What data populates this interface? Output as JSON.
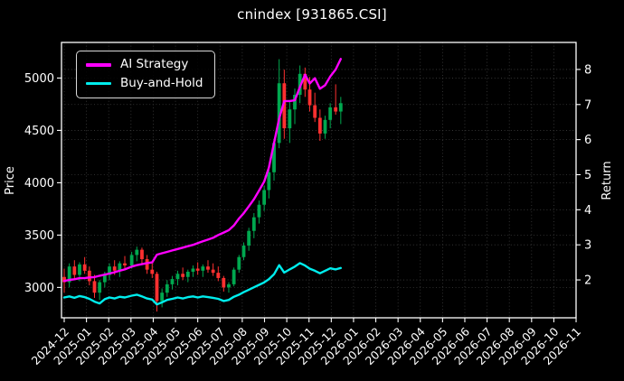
{
  "title": "cnindex [931865.CSI]",
  "legend": {
    "position": "upper left",
    "items": [
      {
        "label": "AI Strategy",
        "color": "#FF00FF"
      },
      {
        "label": "Buy-and-Hold",
        "color": "#00EDED"
      }
    ]
  },
  "colors": {
    "background": "#000000",
    "text": "#FFFFFF",
    "grid": "#3D3D3D",
    "spine": "#FFFFFF",
    "candle_up": "#00A84F",
    "candle_down": "#FF3030",
    "ai_line": "#FF00FF",
    "bh_line": "#00EDED"
  },
  "axes": {
    "x": {
      "tick_labels": [
        "2024-12",
        "2025-01",
        "2025-02",
        "2025-03",
        "2025-04",
        "2025-05",
        "2025-06",
        "2025-07",
        "2025-08",
        "2025-09",
        "2025-10",
        "2025-11",
        "2025-12",
        "2026-01",
        "2026-02",
        "2026-03",
        "2026-04",
        "2026-05",
        "2026-06",
        "2026-07",
        "2026-08",
        "2026-09",
        "2026-10",
        "2026-11"
      ],
      "label_rotation_deg": 45
    },
    "y_left": {
      "label": "Price",
      "ticks": [
        3000,
        3500,
        4000,
        4500,
        5000
      ],
      "range": [
        2710,
        5340
      ]
    },
    "y_right": {
      "label": "Return",
      "ticks": [
        2,
        3,
        4,
        5,
        6,
        7,
        8
      ],
      "range": [
        0.92,
        8.77
      ]
    }
  },
  "chart_data": {
    "type": "candlestick+line",
    "title": "cnindex [931865.CSI]",
    "xlabel": "",
    "ylabel_left": "Price",
    "ylabel_right": "Return",
    "grid": true,
    "x_range_shown": [
      "2024-12",
      "2026-11"
    ],
    "data_ends": "2025-12",
    "dates": [
      "2024-12-01",
      "2024-12-08",
      "2024-12-15",
      "2024-12-22",
      "2024-12-29",
      "2025-01-05",
      "2025-01-12",
      "2025-01-19",
      "2025-01-26",
      "2025-02-02",
      "2025-02-09",
      "2025-02-16",
      "2025-02-23",
      "2025-03-02",
      "2025-03-09",
      "2025-03-16",
      "2025-03-23",
      "2025-03-30",
      "2025-04-06",
      "2025-04-13",
      "2025-04-20",
      "2025-04-27",
      "2025-05-04",
      "2025-05-11",
      "2025-05-18",
      "2025-05-25",
      "2025-06-01",
      "2025-06-08",
      "2025-06-15",
      "2025-06-22",
      "2025-06-29",
      "2025-07-06",
      "2025-07-13",
      "2025-07-20",
      "2025-07-27",
      "2025-08-03",
      "2025-08-10",
      "2025-08-17",
      "2025-08-24",
      "2025-08-31",
      "2025-09-07",
      "2025-09-14",
      "2025-09-21",
      "2025-09-28",
      "2025-10-05",
      "2025-10-12",
      "2025-10-19",
      "2025-10-26",
      "2025-11-02",
      "2025-11-09",
      "2025-11-16",
      "2025-11-23",
      "2025-11-30",
      "2025-12-07",
      "2025-12-14"
    ],
    "candles": {
      "axis": "left",
      "open": [
        3100,
        3050,
        3200,
        3120,
        3220,
        3160,
        3060,
        2950,
        3050,
        3120,
        3200,
        3160,
        3230,
        3210,
        3310,
        3360,
        3270,
        3170,
        3130,
        2870,
        2950,
        3030,
        3080,
        3130,
        3100,
        3150,
        3180,
        3160,
        3200,
        3170,
        3140,
        3090,
        3000,
        3030,
        3170,
        3290,
        3400,
        3540,
        3670,
        3790,
        3930,
        4100,
        4380,
        4950,
        4520,
        4700,
        4840,
        5040,
        4890,
        4740,
        4620,
        4470,
        4600,
        4720,
        4680
      ],
      "high": [
        3180,
        3230,
        3260,
        3240,
        3290,
        3200,
        3120,
        3070,
        3150,
        3230,
        3260,
        3250,
        3300,
        3340,
        3390,
        3380,
        3310,
        3230,
        3150,
        2990,
        3070,
        3110,
        3160,
        3190,
        3170,
        3210,
        3240,
        3220,
        3260,
        3230,
        3200,
        3110,
        3050,
        3190,
        3310,
        3430,
        3570,
        3710,
        3830,
        3970,
        4150,
        4420,
        5180,
        5080,
        4780,
        4900,
        5120,
        5100,
        5010,
        4860,
        4700,
        4640,
        4760,
        4940,
        4820
      ],
      "low": [
        2950,
        3000,
        3080,
        3060,
        3130,
        3020,
        2900,
        2880,
        3000,
        3070,
        3120,
        3100,
        3170,
        3180,
        3250,
        3220,
        3130,
        3090,
        2770,
        2810,
        2910,
        2980,
        3020,
        3070,
        3050,
        3100,
        3120,
        3100,
        3140,
        3110,
        3060,
        2960,
        2950,
        3010,
        3140,
        3260,
        3350,
        3470,
        3610,
        3730,
        3850,
        4020,
        4330,
        4420,
        4380,
        4560,
        4760,
        4820,
        4680,
        4580,
        4400,
        4420,
        4520,
        4650,
        4560
      ],
      "close": [
        3050,
        3200,
        3120,
        3220,
        3160,
        3060,
        2950,
        3050,
        3120,
        3200,
        3160,
        3230,
        3210,
        3310,
        3360,
        3270,
        3170,
        3130,
        2870,
        2950,
        3030,
        3080,
        3130,
        3100,
        3150,
        3180,
        3160,
        3200,
        3170,
        3140,
        3090,
        3000,
        3030,
        3170,
        3290,
        3400,
        3540,
        3670,
        3790,
        3930,
        4100,
        4380,
        4950,
        4520,
        4700,
        4840,
        5040,
        4890,
        4740,
        4620,
        4470,
        4600,
        4720,
        4680,
        4760
      ]
    },
    "series": [
      {
        "name": "AI Strategy",
        "axis": "right",
        "color": "#FF00FF",
        "values": [
          1.97,
          2.0,
          2.02,
          2.05,
          2.05,
          2.07,
          2.08,
          2.12,
          2.15,
          2.18,
          2.22,
          2.26,
          2.3,
          2.38,
          2.42,
          2.45,
          2.48,
          2.5,
          2.72,
          2.76,
          2.8,
          2.84,
          2.88,
          2.92,
          2.96,
          3.0,
          3.05,
          3.1,
          3.15,
          3.2,
          3.28,
          3.35,
          3.42,
          3.55,
          3.75,
          3.9,
          4.1,
          4.3,
          4.55,
          4.8,
          5.2,
          5.9,
          6.6,
          7.1,
          7.1,
          7.12,
          7.5,
          7.85,
          7.6,
          7.75,
          7.45,
          7.55,
          7.8,
          8.0,
          8.3
        ]
      },
      {
        "name": "Buy-and-Hold",
        "axis": "right",
        "color": "#00EDED",
        "values": [
          1.5,
          1.53,
          1.49,
          1.54,
          1.51,
          1.46,
          1.38,
          1.33,
          1.45,
          1.5,
          1.47,
          1.52,
          1.5,
          1.55,
          1.58,
          1.53,
          1.47,
          1.44,
          1.3,
          1.36,
          1.43,
          1.46,
          1.5,
          1.47,
          1.51,
          1.53,
          1.5,
          1.53,
          1.51,
          1.49,
          1.46,
          1.4,
          1.43,
          1.52,
          1.58,
          1.65,
          1.72,
          1.79,
          1.86,
          1.93,
          2.02,
          2.16,
          2.42,
          2.21,
          2.3,
          2.38,
          2.48,
          2.41,
          2.32,
          2.26,
          2.19,
          2.26,
          2.33,
          2.3,
          2.34
        ]
      }
    ]
  }
}
